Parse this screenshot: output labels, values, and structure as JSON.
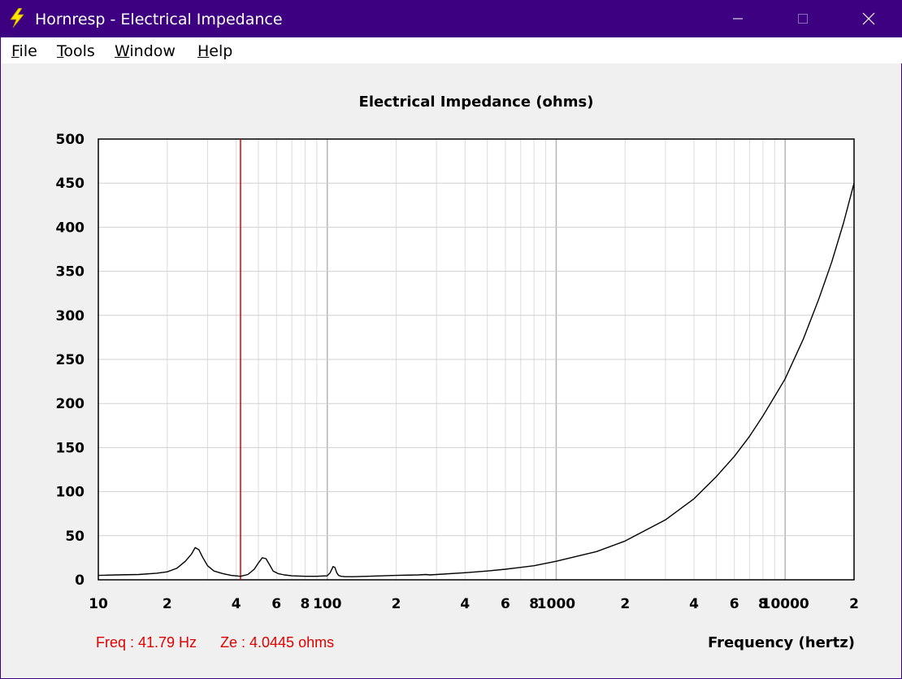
{
  "window": {
    "title": "Hornresp - Electrical Impedance",
    "titlebar_color": "#3c0080",
    "icons": {
      "app": "lightning-bolt-icon",
      "minimize": "minimize-icon",
      "maximize": "maximize-icon",
      "close": "close-icon"
    }
  },
  "menu": {
    "items": [
      {
        "label": "File",
        "accel": "F",
        "rest": "ile"
      },
      {
        "label": "Tools",
        "accel": "T",
        "rest": "ools"
      },
      {
        "label": "Window",
        "accel": "W",
        "rest": "indow"
      },
      {
        "label": "Help",
        "accel": "H",
        "rest": "elp"
      }
    ]
  },
  "readout": {
    "freq": "Freq : 41.79 Hz",
    "ze": "Ze : 4.0445 ohms",
    "color": "#e00000"
  },
  "chart_data": {
    "type": "line",
    "title": "Electrical Impedance (ohms)",
    "xlabel": "Frequency (hertz)",
    "ylabel": "",
    "xscale": "log",
    "xlim": [
      10,
      20000
    ],
    "ylim": [
      0,
      500
    ],
    "grid": true,
    "line_color": "#000000",
    "cursor": {
      "x": 41.79,
      "color": "#e00000"
    },
    "y_ticks": [
      "0",
      "50",
      "100",
      "150",
      "200",
      "250",
      "300",
      "350",
      "400",
      "450",
      "500"
    ],
    "x_ticks": [
      {
        "value": 10,
        "label": "10"
      },
      {
        "value": 20,
        "label": "2"
      },
      {
        "value": 40,
        "label": "4"
      },
      {
        "value": 60,
        "label": "6"
      },
      {
        "value": 80,
        "label": "8"
      },
      {
        "value": 100,
        "label": "100"
      },
      {
        "value": 200,
        "label": "2"
      },
      {
        "value": 400,
        "label": "4"
      },
      {
        "value": 600,
        "label": "6"
      },
      {
        "value": 800,
        "label": "8"
      },
      {
        "value": 1000,
        "label": "1000"
      },
      {
        "value": 2000,
        "label": "2"
      },
      {
        "value": 4000,
        "label": "4"
      },
      {
        "value": 6000,
        "label": "6"
      },
      {
        "value": 8000,
        "label": "8"
      },
      {
        "value": 10000,
        "label": "10000"
      },
      {
        "value": 20000,
        "label": "2"
      }
    ],
    "series": [
      {
        "x": [
          10,
          12,
          15,
          18,
          20,
          22,
          24,
          25.5,
          26.5,
          27.5,
          28.5,
          30,
          32,
          35,
          38,
          41.79,
          45,
          48,
          50,
          52,
          54,
          56,
          58,
          61,
          65,
          70,
          80,
          90,
          100,
          103,
          106,
          108,
          110,
          112,
          115,
          120,
          130,
          150,
          200,
          250,
          270,
          280,
          300,
          400,
          500,
          600,
          800,
          1000,
          1500,
          2000,
          3000,
          4000,
          5000,
          6000,
          7000,
          8000,
          9000,
          10000,
          12000,
          14000,
          16000,
          18000,
          20000
        ],
        "y": [
          5,
          5.5,
          6,
          7.5,
          9,
          13,
          21,
          29,
          36.5,
          34,
          26,
          16,
          10,
          7,
          5,
          4,
          6,
          12,
          19,
          25,
          24,
          17,
          10,
          7,
          5.5,
          4.5,
          4,
          4,
          4.5,
          8,
          15,
          14,
          8,
          5,
          4,
          3.5,
          3.5,
          4,
          5,
          5.5,
          6,
          5.5,
          6,
          8,
          10,
          12,
          16,
          21,
          32,
          44,
          68,
          92,
          117,
          140,
          163,
          186,
          208,
          228,
          273,
          318,
          361,
          405,
          450
        ]
      }
    ]
  }
}
